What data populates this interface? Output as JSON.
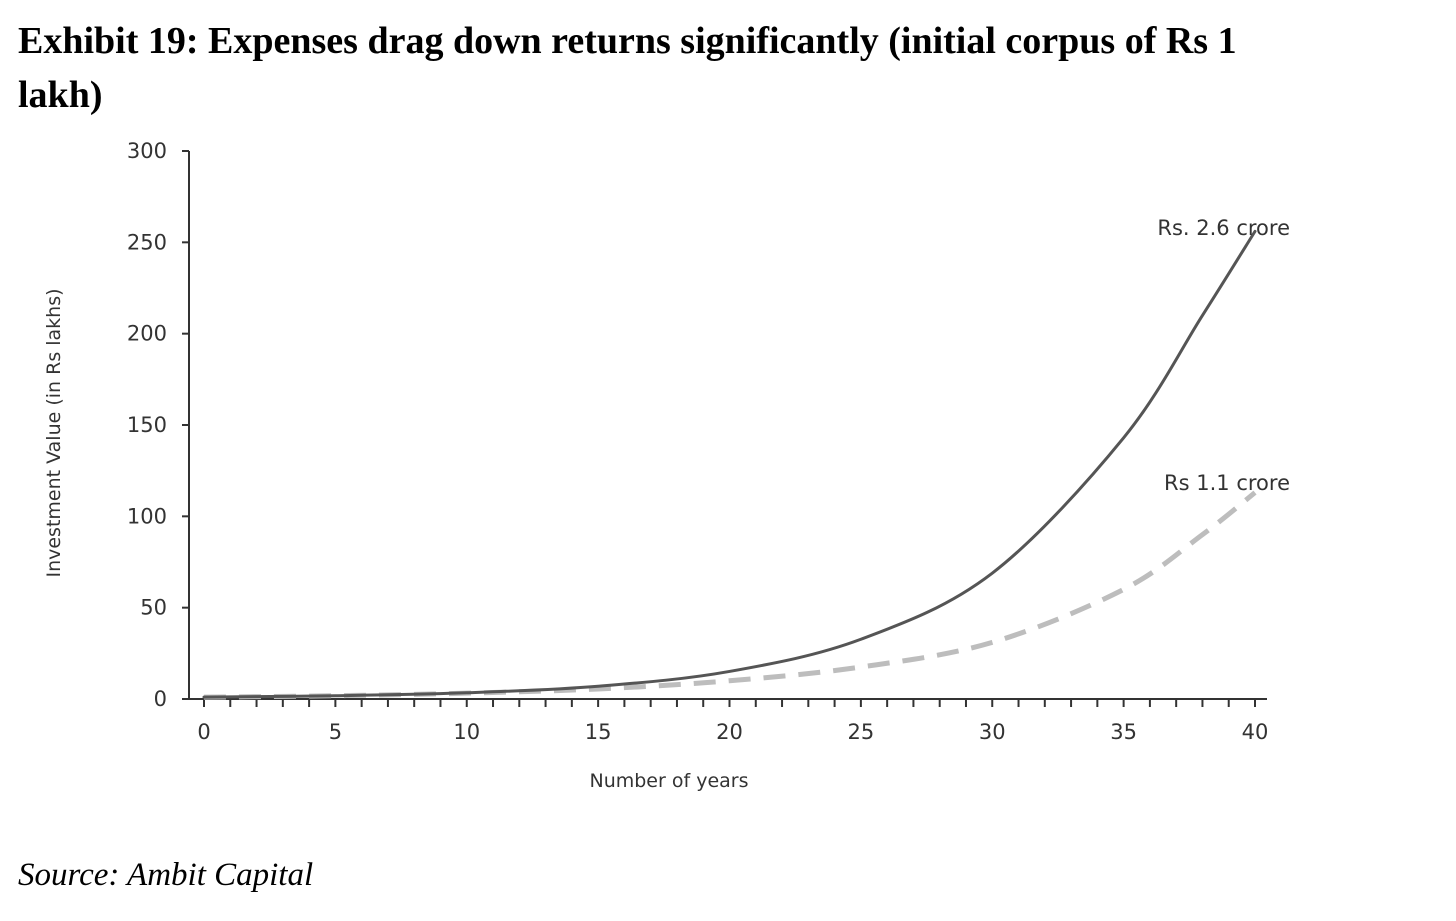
{
  "header": {
    "title": "Exhibit 19: Expenses drag down returns significantly (initial corpus of Rs 1 lakh)"
  },
  "footer": {
    "source": "Source: Ambit Capital"
  },
  "chart_data": {
    "type": "line",
    "title": "",
    "xlabel": "Number of years",
    "ylabel": "Investment Value (in Rs lakhs)",
    "xlim": [
      0,
      40
    ],
    "ylim": [
      0,
      300
    ],
    "x_ticks": [
      0,
      5,
      10,
      15,
      20,
      25,
      30,
      35,
      40
    ],
    "y_ticks": [
      0,
      50,
      100,
      150,
      200,
      250,
      300
    ],
    "x_minor_step": 1,
    "grid": false,
    "legend": "none",
    "series": [
      {
        "label": "Rs. 2.6 crore",
        "style": "solid",
        "color": "#555555",
        "x": [
          0,
          5,
          10,
          15,
          20,
          25,
          30,
          35,
          38,
          40
        ],
        "y": [
          1,
          1.8,
          3.4,
          7,
          15.1,
          32.7,
          68.9,
          143,
          210,
          256
        ]
      },
      {
        "label": "Rs 1.1 crore",
        "style": "dashed",
        "color": "#bdbdbd",
        "x": [
          0,
          5,
          10,
          15,
          20,
          25,
          30,
          35,
          38,
          40
        ],
        "y": [
          1,
          1.8,
          3.2,
          5.5,
          10,
          17.5,
          31,
          60,
          90,
          113
        ]
      }
    ]
  }
}
